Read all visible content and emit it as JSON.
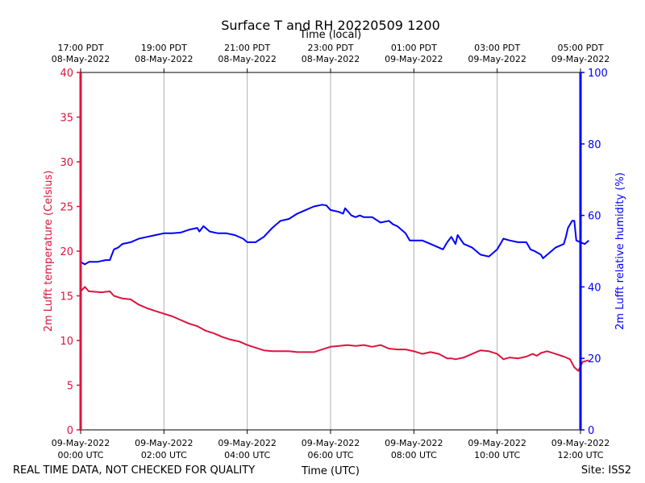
{
  "chart_data": {
    "type": "line",
    "title": "Surface T and RH 20220509 1200",
    "top_axis_label": "Time (local)",
    "xlabel": "Time (UTC)",
    "ylabel_left": "2m Lufft temperature (Celsius)",
    "ylabel_right": "2m Lufft relative humidity (%)",
    "footer_left": "REAL TIME DATA, NOT CHECKED FOR QUALITY",
    "footer_right": "Site: ISS2",
    "xlim_hours": [
      0,
      12
    ],
    "ylim_left": [
      0,
      40
    ],
    "ylim_right": [
      0,
      100
    ],
    "grid": "vertical",
    "left_ticks": [
      0,
      5,
      10,
      15,
      20,
      25,
      30,
      35,
      40
    ],
    "right_ticks": [
      0,
      20,
      40,
      60,
      80,
      100
    ],
    "bottom_ticks": [
      {
        "hour": 0,
        "date": "09-May-2022",
        "time": "00:00 UTC"
      },
      {
        "hour": 2,
        "date": "09-May-2022",
        "time": "02:00 UTC"
      },
      {
        "hour": 4,
        "date": "09-May-2022",
        "time": "04:00 UTC"
      },
      {
        "hour": 6,
        "date": "09-May-2022",
        "time": "06:00 UTC"
      },
      {
        "hour": 8,
        "date": "09-May-2022",
        "time": "08:00 UTC"
      },
      {
        "hour": 10,
        "date": "09-May-2022",
        "time": "10:00 UTC"
      },
      {
        "hour": 12,
        "date": "09-May-2022",
        "time": "12:00 UTC"
      }
    ],
    "top_ticks": [
      {
        "hour": 0,
        "time": "17:00 PDT",
        "date": "08-May-2022"
      },
      {
        "hour": 2,
        "time": "19:00 PDT",
        "date": "08-May-2022"
      },
      {
        "hour": 4,
        "time": "21:00 PDT",
        "date": "08-May-2022"
      },
      {
        "hour": 6,
        "time": "23:00 PDT",
        "date": "08-May-2022"
      },
      {
        "hour": 8,
        "time": "01:00 PDT",
        "date": "09-May-2022"
      },
      {
        "hour": 10,
        "time": "03:00 PDT",
        "date": "09-May-2022"
      },
      {
        "hour": 12,
        "time": "05:00 PDT",
        "date": "09-May-2022"
      }
    ],
    "series": [
      {
        "name": "2m Lufft temperature",
        "axis": "left",
        "color": "#dc143c",
        "points": [
          [
            0,
            15.5
          ],
          [
            0.1,
            16.0
          ],
          [
            0.2,
            15.5
          ],
          [
            0.5,
            15.4
          ],
          [
            0.7,
            15.5
          ],
          [
            0.8,
            15.0
          ],
          [
            1.0,
            14.7
          ],
          [
            1.2,
            14.6
          ],
          [
            1.4,
            14.0
          ],
          [
            1.6,
            13.6
          ],
          [
            1.8,
            13.3
          ],
          [
            2.0,
            13.0
          ],
          [
            2.2,
            12.7
          ],
          [
            2.4,
            12.3
          ],
          [
            2.6,
            11.9
          ],
          [
            2.8,
            11.6
          ],
          [
            3.0,
            11.1
          ],
          [
            3.2,
            10.8
          ],
          [
            3.4,
            10.4
          ],
          [
            3.6,
            10.1
          ],
          [
            3.8,
            9.9
          ],
          [
            4.0,
            9.5
          ],
          [
            4.2,
            9.2
          ],
          [
            4.4,
            8.9
          ],
          [
            4.6,
            8.8
          ],
          [
            5.0,
            8.8
          ],
          [
            5.2,
            8.7
          ],
          [
            5.4,
            8.7
          ],
          [
            5.6,
            8.7
          ],
          [
            5.8,
            9.0
          ],
          [
            6.0,
            9.3
          ],
          [
            6.2,
            9.4
          ],
          [
            6.4,
            9.5
          ],
          [
            6.6,
            9.4
          ],
          [
            6.8,
            9.5
          ],
          [
            7.0,
            9.3
          ],
          [
            7.2,
            9.5
          ],
          [
            7.4,
            9.1
          ],
          [
            7.6,
            9.0
          ],
          [
            7.8,
            9.0
          ],
          [
            8.0,
            8.8
          ],
          [
            8.2,
            8.5
          ],
          [
            8.4,
            8.7
          ],
          [
            8.6,
            8.5
          ],
          [
            8.8,
            8.0
          ],
          [
            8.9,
            8.0
          ],
          [
            9.0,
            7.9
          ],
          [
            9.2,
            8.1
          ],
          [
            9.4,
            8.5
          ],
          [
            9.6,
            8.9
          ],
          [
            9.8,
            8.8
          ],
          [
            10.0,
            8.5
          ],
          [
            10.15,
            7.9
          ],
          [
            10.3,
            8.1
          ],
          [
            10.5,
            8.0
          ],
          [
            10.7,
            8.2
          ],
          [
            10.85,
            8.5
          ],
          [
            10.95,
            8.3
          ],
          [
            11.05,
            8.6
          ],
          [
            11.2,
            8.8
          ],
          [
            11.4,
            8.5
          ],
          [
            11.6,
            8.2
          ],
          [
            11.75,
            7.9
          ],
          [
            11.85,
            7.0
          ],
          [
            11.95,
            6.6
          ],
          [
            12.05,
            7.6
          ],
          [
            12.2,
            7.8
          ]
        ]
      },
      {
        "name": "2m Lufft relative humidity",
        "axis": "right",
        "color": "#0000ff",
        "points": [
          [
            0,
            47.0
          ],
          [
            0.1,
            46.3
          ],
          [
            0.2,
            47.0
          ],
          [
            0.4,
            47.0
          ],
          [
            0.6,
            47.5
          ],
          [
            0.7,
            47.5
          ],
          [
            0.75,
            49.0
          ],
          [
            0.8,
            50.5
          ],
          [
            0.9,
            51.0
          ],
          [
            1.0,
            52.0
          ],
          [
            1.2,
            52.5
          ],
          [
            1.4,
            53.5
          ],
          [
            1.6,
            54.0
          ],
          [
            1.8,
            54.5
          ],
          [
            2.0,
            55.0
          ],
          [
            2.2,
            55.0
          ],
          [
            2.4,
            55.2
          ],
          [
            2.6,
            56.0
          ],
          [
            2.8,
            56.5
          ],
          [
            2.85,
            55.5
          ],
          [
            2.95,
            57.0
          ],
          [
            3.1,
            55.5
          ],
          [
            3.3,
            55.0
          ],
          [
            3.5,
            55.0
          ],
          [
            3.7,
            54.5
          ],
          [
            3.9,
            53.5
          ],
          [
            4.0,
            52.5
          ],
          [
            4.2,
            52.5
          ],
          [
            4.4,
            54.0
          ],
          [
            4.6,
            56.5
          ],
          [
            4.8,
            58.5
          ],
          [
            5.0,
            59.0
          ],
          [
            5.2,
            60.5
          ],
          [
            5.4,
            61.5
          ],
          [
            5.6,
            62.5
          ],
          [
            5.8,
            63.0
          ],
          [
            5.9,
            62.8
          ],
          [
            6.0,
            61.5
          ],
          [
            6.2,
            61.0
          ],
          [
            6.3,
            60.5
          ],
          [
            6.35,
            62.0
          ],
          [
            6.5,
            60.0
          ],
          [
            6.6,
            59.5
          ],
          [
            6.7,
            60.0
          ],
          [
            6.8,
            59.5
          ],
          [
            7.0,
            59.5
          ],
          [
            7.2,
            58.0
          ],
          [
            7.4,
            58.5
          ],
          [
            7.5,
            57.5
          ],
          [
            7.6,
            57.0
          ],
          [
            7.8,
            55.0
          ],
          [
            7.9,
            53.0
          ],
          [
            8.0,
            53.0
          ],
          [
            8.2,
            53.0
          ],
          [
            8.4,
            52.0
          ],
          [
            8.6,
            51.0
          ],
          [
            8.7,
            50.5
          ],
          [
            8.8,
            52.5
          ],
          [
            8.9,
            54.0
          ],
          [
            9.0,
            52.0
          ],
          [
            9.05,
            54.5
          ],
          [
            9.2,
            52.0
          ],
          [
            9.4,
            51.0
          ],
          [
            9.5,
            50.0
          ],
          [
            9.6,
            49.0
          ],
          [
            9.8,
            48.5
          ],
          [
            10.0,
            50.5
          ],
          [
            10.15,
            53.5
          ],
          [
            10.3,
            53.0
          ],
          [
            10.5,
            52.5
          ],
          [
            10.7,
            52.5
          ],
          [
            10.8,
            50.5
          ],
          [
            10.9,
            50.0
          ],
          [
            11.05,
            49.0
          ],
          [
            11.1,
            48.0
          ],
          [
            11.2,
            49.0
          ],
          [
            11.3,
            50.0
          ],
          [
            11.4,
            51.0
          ],
          [
            11.5,
            51.5
          ],
          [
            11.6,
            52.0
          ],
          [
            11.65,
            54.0
          ],
          [
            11.7,
            56.5
          ],
          [
            11.8,
            58.5
          ],
          [
            11.85,
            58.5
          ],
          [
            11.9,
            53.0
          ],
          [
            12.0,
            52.5
          ],
          [
            12.1,
            52.0
          ],
          [
            12.2,
            53.0
          ]
        ]
      }
    ]
  },
  "colors": {
    "temperature": "#dc143c",
    "humidity": "#0000ff",
    "grid": "#b0b0b0"
  }
}
